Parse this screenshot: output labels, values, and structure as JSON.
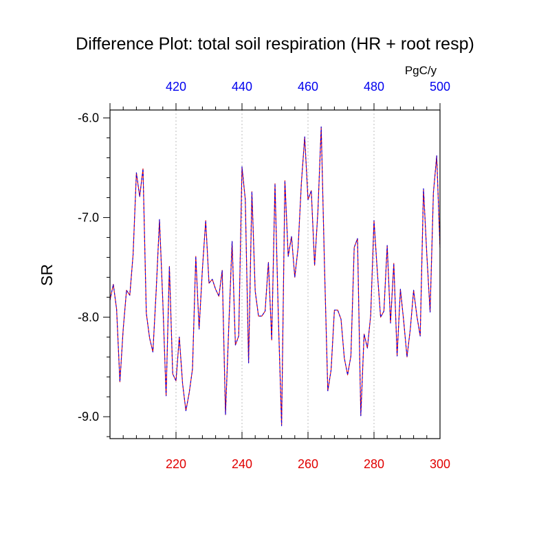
{
  "chart_data": {
    "type": "line",
    "title": "Difference Plot: total soil respiration (HR + root resp)",
    "ylabel": "SR",
    "top_axis_units": "PgC/y",
    "xlim": [
      200,
      300
    ],
    "top_xlim": [
      400,
      500
    ],
    "ylim": [
      -9.22,
      -5.92
    ],
    "bottom_ticks": [
      220,
      240,
      260,
      280,
      300
    ],
    "bottom_tick_labels": [
      "220",
      "240",
      "260",
      "280",
      "300"
    ],
    "top_ticks": [
      420,
      440,
      460,
      480,
      500
    ],
    "top_tick_labels": [
      "420",
      "440",
      "460",
      "480",
      "500"
    ],
    "y_ticks": [
      -6.0,
      -7.0,
      -8.0,
      -9.0
    ],
    "y_tick_labels": [
      "-6.0",
      "-7.0",
      "-8.0",
      "-9.0"
    ],
    "grid": "vertical dotted at major bottom ticks",
    "colors": {
      "bottom_axis": "#e00000",
      "top_axis": "#0000ee",
      "series_a": "#e00000",
      "series_b": "#0000ee"
    },
    "x": [
      200,
      201,
      202,
      203,
      204,
      205,
      206,
      207,
      208,
      209,
      210,
      211,
      212,
      213,
      214,
      215,
      216,
      217,
      218,
      219,
      220,
      221,
      222,
      223,
      224,
      225,
      226,
      227,
      228,
      229,
      230,
      231,
      232,
      233,
      234,
      235,
      236,
      237,
      238,
      239,
      240,
      241,
      242,
      243,
      244,
      245,
      246,
      247,
      248,
      249,
      250,
      251,
      252,
      253,
      254,
      255,
      256,
      257,
      258,
      259,
      260,
      261,
      262,
      263,
      264,
      265,
      266,
      267,
      268,
      269,
      270,
      271,
      272,
      273,
      274,
      275,
      276,
      277,
      278,
      279,
      280,
      281,
      282,
      283,
      284,
      285,
      286,
      287,
      288,
      289,
      290,
      291,
      292,
      293,
      294,
      295,
      296,
      297,
      298,
      299,
      300
    ],
    "y": [
      -7.83,
      -7.67,
      -7.92,
      -8.65,
      -8.12,
      -7.73,
      -7.78,
      -7.37,
      -6.55,
      -6.79,
      -6.51,
      -7.96,
      -8.21,
      -8.35,
      -7.73,
      -7.02,
      -7.84,
      -8.79,
      -7.49,
      -8.57,
      -8.64,
      -8.2,
      -8.67,
      -8.94,
      -8.76,
      -8.52,
      -7.39,
      -8.12,
      -7.52,
      -7.03,
      -7.66,
      -7.62,
      -7.72,
      -7.79,
      -7.53,
      -8.98,
      -8.09,
      -7.24,
      -8.28,
      -8.19,
      -6.49,
      -6.82,
      -8.46,
      -6.74,
      -7.74,
      -7.99,
      -7.99,
      -7.94,
      -7.45,
      -8.23,
      -6.66,
      -7.98,
      -9.09,
      -6.63,
      -7.39,
      -7.19,
      -7.6,
      -7.3,
      -6.65,
      -6.19,
      -6.82,
      -6.73,
      -7.48,
      -6.94,
      -6.09,
      -7.49,
      -8.74,
      -8.53,
      -7.93,
      -7.93,
      -8.02,
      -8.41,
      -8.58,
      -8.39,
      -7.3,
      -7.21,
      -8.99,
      -8.17,
      -8.31,
      -7.98,
      -7.03,
      -7.54,
      -8.0,
      -7.94,
      -7.28,
      -8.06,
      -7.46,
      -8.39,
      -7.72,
      -8.04,
      -8.4,
      -8.12,
      -7.73,
      -7.99,
      -8.19,
      -6.71,
      -7.37,
      -7.95,
      -6.75,
      -6.38,
      -7.3
    ]
  }
}
